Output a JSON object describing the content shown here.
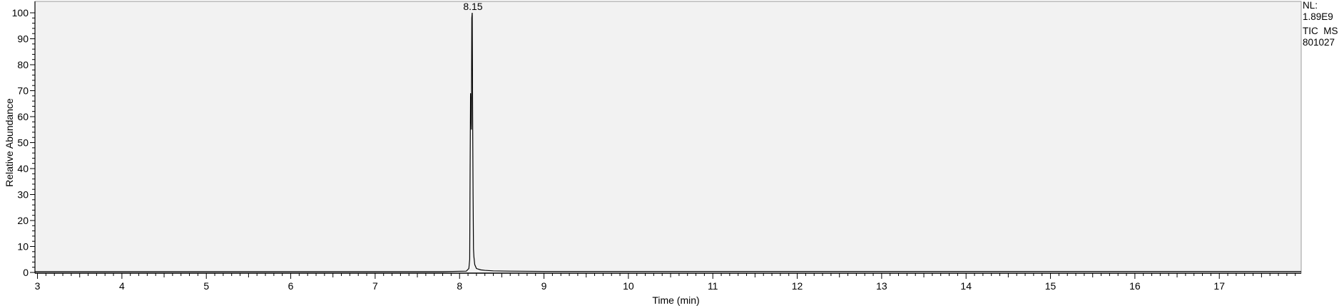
{
  "colors": {
    "plot_background": "#f2f2f2",
    "trace": "#000000",
    "axis": "#000000"
  },
  "chart_data": {
    "type": "line",
    "xlabel": "Time (min)",
    "ylabel": "Relative Abundance",
    "xlim": [
      2.97,
      17.97
    ],
    "ylim": [
      0,
      100
    ],
    "x_ticks": [
      3,
      4,
      5,
      6,
      7,
      8,
      9,
      10,
      11,
      12,
      13,
      14,
      15,
      16,
      17
    ],
    "x_tick_labels": [
      "3",
      "4",
      "5",
      "6",
      "7",
      "8",
      "9",
      "10",
      "11",
      "12",
      "13",
      "14",
      "15",
      "16",
      "17"
    ],
    "y_ticks": [
      0,
      10,
      20,
      30,
      40,
      50,
      60,
      70,
      80,
      90,
      100
    ],
    "y_tick_labels": [
      "0",
      "10",
      "20",
      "30",
      "40",
      "50",
      "60",
      "70",
      "80",
      "90",
      "100"
    ],
    "grid": false,
    "annotations": [
      {
        "text": "8.15",
        "x": 8.15,
        "y": 100
      }
    ],
    "info_box": [
      "NL:",
      "1.89E9",
      "TIC  MS",
      "801027"
    ],
    "series": [
      {
        "x": [
          2.97,
          3.5,
          4.0,
          5.0,
          6.0,
          7.0,
          7.8,
          8.08,
          8.11,
          8.12,
          8.125,
          8.13,
          8.135,
          8.14,
          8.145,
          8.15,
          8.155,
          8.16,
          8.165,
          8.17,
          8.18,
          8.2,
          8.25,
          8.3,
          8.35,
          8.4,
          8.6,
          9.0,
          10.0,
          12.0,
          14.0,
          16.0,
          17.97
        ],
        "y": [
          0.3,
          0.3,
          0.3,
          0.3,
          0.3,
          0.3,
          0.3,
          0.5,
          1.5,
          5,
          40,
          69,
          62,
          55,
          98,
          100,
          60,
          30,
          9,
          6,
          3,
          1.5,
          1.0,
          0.8,
          0.7,
          0.6,
          0.5,
          0.4,
          0.4,
          0.4,
          0.4,
          0.4,
          0.4
        ]
      }
    ]
  }
}
